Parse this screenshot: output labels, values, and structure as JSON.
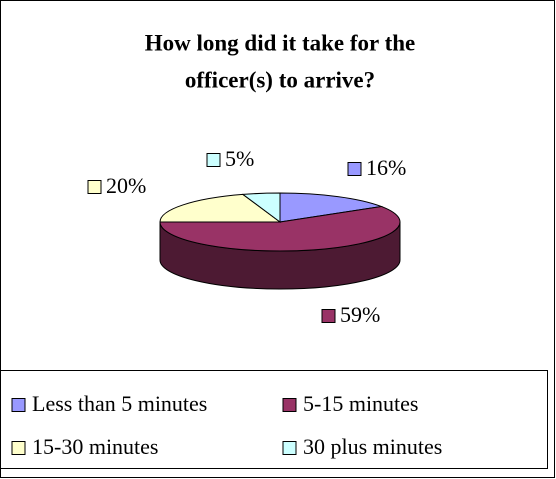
{
  "chart_data": {
    "type": "pie3d",
    "title": [
      "How long did it take for the",
      "officer(s) to arrive?"
    ],
    "categories": [
      "Less than 5 minutes",
      "5-15 minutes",
      "15-30 minutes",
      "30 plus minutes"
    ],
    "values": [
      16,
      59,
      20,
      5
    ],
    "value_labels": [
      "16%",
      "59%",
      "20%",
      "5%"
    ],
    "colors": [
      "#9999ff",
      "#993366",
      "#ffffcc",
      "#ccffff"
    ],
    "legend": "bottom"
  }
}
